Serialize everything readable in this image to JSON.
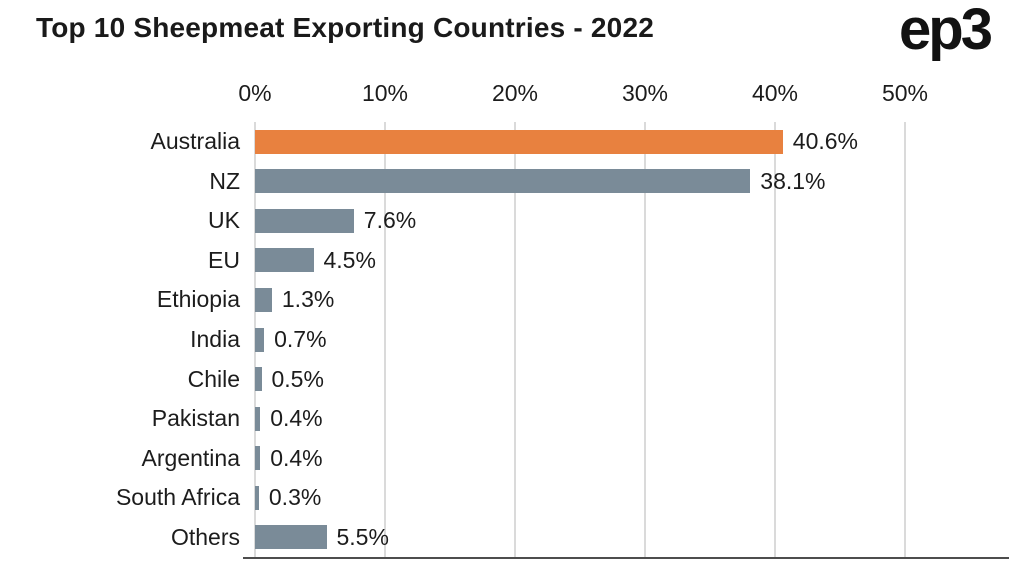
{
  "header": {
    "title": "Top 10 Sheepmeat Exporting Countries - 2022",
    "logo": "ep3"
  },
  "chart_data": {
    "type": "bar",
    "orientation": "horizontal",
    "title": "Top 10 Sheepmeat Exporting Countries - 2022",
    "categories": [
      "Australia",
      "NZ",
      "UK",
      "EU",
      "Ethiopia",
      "India",
      "Chile",
      "Pakistan",
      "Argentina",
      "South Africa",
      "Others"
    ],
    "values": [
      40.6,
      38.1,
      7.6,
      4.5,
      1.3,
      0.7,
      0.5,
      0.4,
      0.4,
      0.3,
      5.5
    ],
    "value_labels": [
      "40.6%",
      "38.1%",
      "7.6%",
      "4.5%",
      "1.3%",
      "0.7%",
      "0.5%",
      "0.4%",
      "0.4%",
      "0.3%",
      "5.5%"
    ],
    "xlabel": "",
    "ylabel": "",
    "xlim": [
      0,
      50
    ],
    "x_ticks": [
      0,
      10,
      20,
      30,
      40,
      50
    ],
    "x_tick_labels": [
      "0%",
      "10%",
      "20%",
      "30%",
      "40%",
      "50%"
    ],
    "bar_color": "#7A8B98",
    "highlight_color": "#E8813F",
    "highlight_index": 0,
    "grid": true,
    "axis_position": "top",
    "legend": "none"
  }
}
